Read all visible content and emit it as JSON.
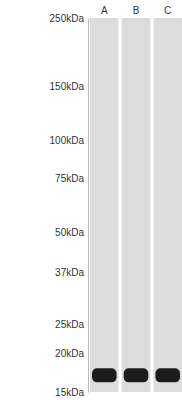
{
  "chart_data": {
    "type": "blot",
    "categories": [
      "A",
      "B",
      "C"
    ],
    "values": [
      17,
      17,
      17
    ],
    "color": "#1c1c1c",
    "log": "y",
    "ylim": [
      15,
      250
    ],
    "yticks": [
      {
        "value": 250,
        "label": "250kDa"
      },
      {
        "value": 150,
        "label": "150kDa"
      },
      {
        "value": 100,
        "label": "100kDa"
      },
      {
        "value": 75,
        "label": "75kDa"
      },
      {
        "value": 50,
        "label": "50kDa"
      },
      {
        "value": 37,
        "label": "37kDa"
      },
      {
        "value": 25,
        "label": "25kDa"
      },
      {
        "value": 20,
        "label": "20kDa"
      },
      {
        "value": 15,
        "label": "15kDa"
      }
    ]
  }
}
